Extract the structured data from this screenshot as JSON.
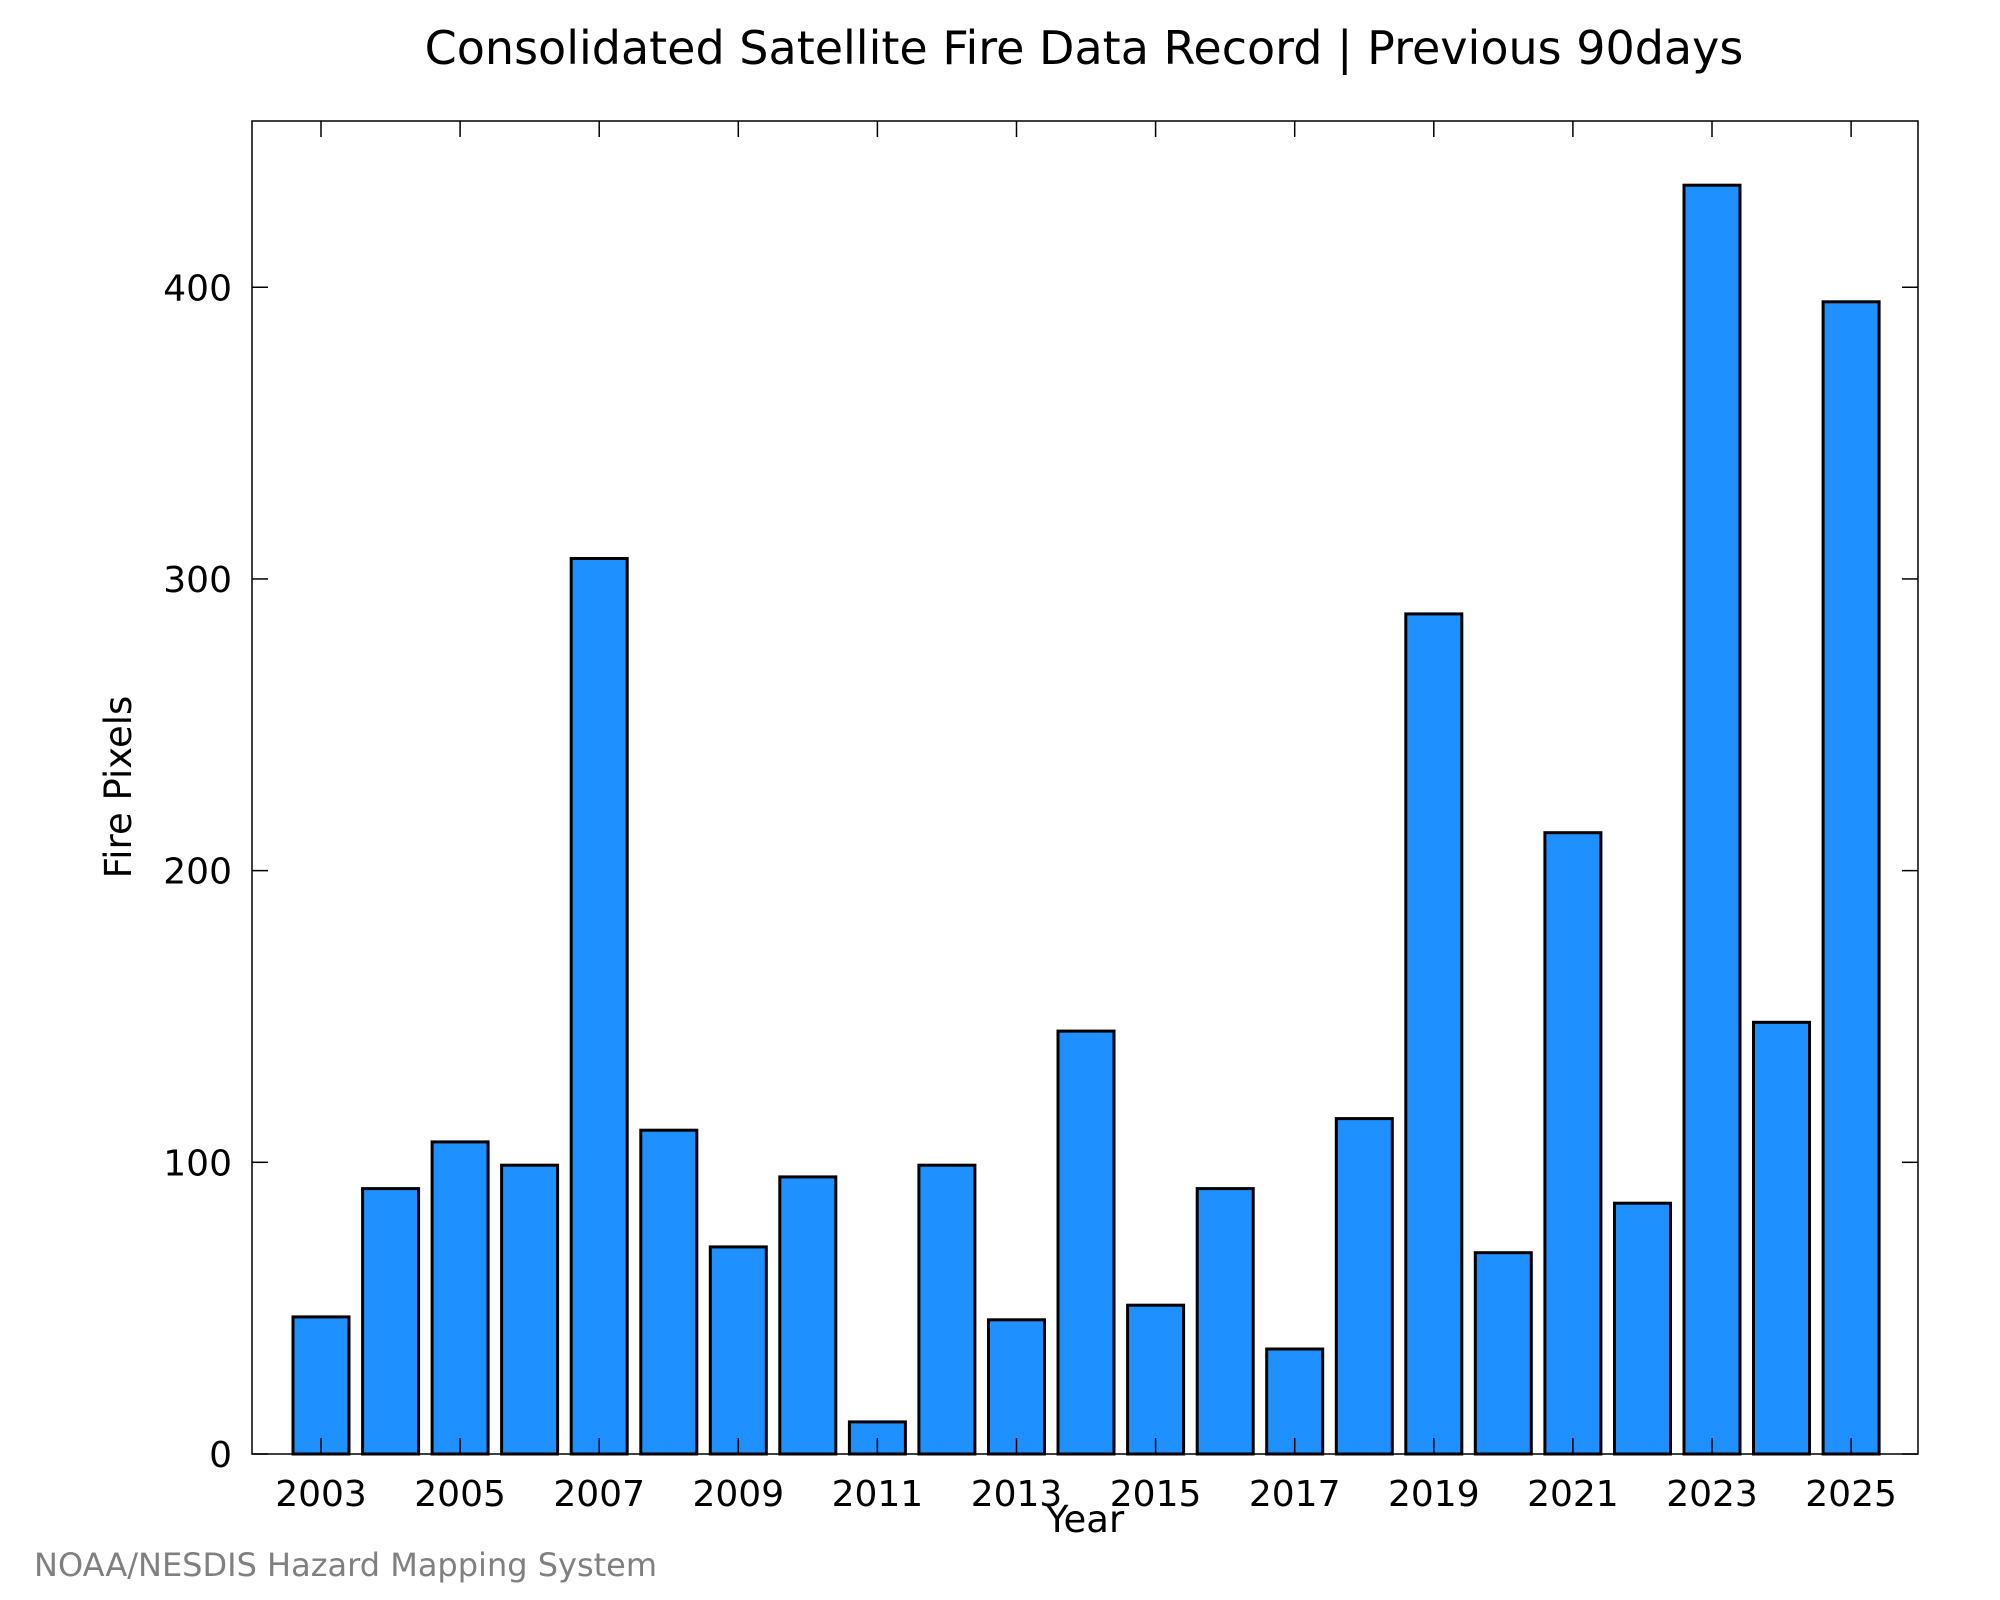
{
  "chart_data": {
    "type": "bar",
    "title": "Consolidated Satellite Fire Data Record | Previous 90days",
    "xlabel": "Year",
    "ylabel": "Fire Pixels",
    "categories": [
      "2003",
      "2004",
      "2005",
      "2006",
      "2007",
      "2008",
      "2009",
      "2010",
      "2011",
      "2012",
      "2013",
      "2014",
      "2015",
      "2016",
      "2017",
      "2018",
      "2019",
      "2020",
      "2021",
      "2022",
      "2023",
      "2024",
      "2025"
    ],
    "values": [
      47,
      91,
      107,
      99,
      307,
      111,
      71,
      95,
      11,
      99,
      46,
      145,
      51,
      91,
      36,
      115,
      288,
      69,
      213,
      86,
      435,
      148,
      395
    ],
    "x_tick_labels": [
      "2003",
      "2005",
      "2007",
      "2009",
      "2011",
      "2013",
      "2015",
      "2017",
      "2019",
      "2021",
      "2023",
      "2025"
    ],
    "y_ticks": [
      0,
      100,
      200,
      300,
      400
    ],
    "ylim": [
      0,
      457
    ],
    "grid": false,
    "legend": "none",
    "bar_color": "#1e90ff",
    "bar_edge_color": "#000000"
  },
  "credit": "NOAA/NESDIS Hazard Mapping System"
}
